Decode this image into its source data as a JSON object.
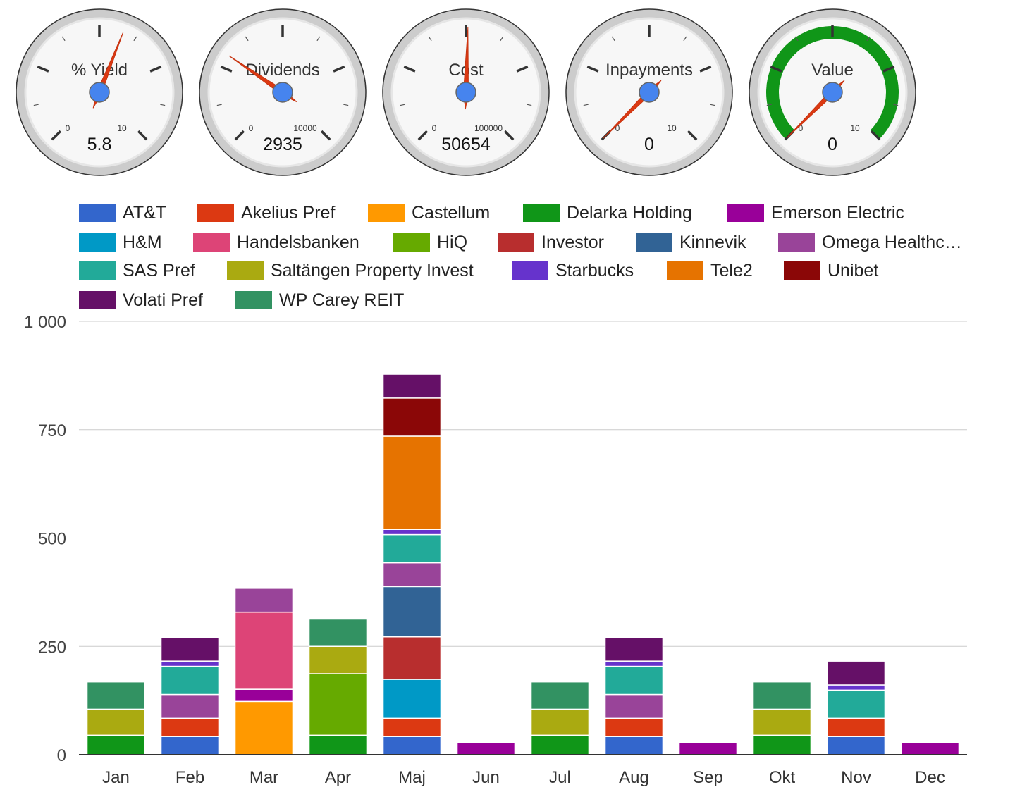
{
  "gauges": [
    {
      "label": "% Yield",
      "value": 5.8,
      "display": "5.8",
      "min": 0,
      "max": 10,
      "min_label": "0",
      "max_label": "10",
      "green_band": false
    },
    {
      "label": "Dividends",
      "value": 2935,
      "display": "2935",
      "min": 0,
      "max": 10000,
      "min_label": "0",
      "max_label": "10000",
      "green_band": false
    },
    {
      "label": "Cost",
      "value": 50654,
      "display": "50654",
      "min": 0,
      "max": 100000,
      "min_label": "0",
      "max_label": "100000",
      "green_band": false
    },
    {
      "label": "Inpayments",
      "value": 0,
      "display": "0",
      "min": 0,
      "max": 10,
      "min_label": "0",
      "max_label": "10",
      "green_band": false
    },
    {
      "label": "Value",
      "value": 0,
      "display": "0",
      "min": 0,
      "max": 10,
      "min_label": "0",
      "max_label": "10",
      "green_band": true
    }
  ],
  "colors": {
    "gauge_needle": "#dc3912",
    "gauge_hub": "#4684ee",
    "gauge_band": "#109618",
    "gridline": "#cccccc",
    "axis": "#333333"
  },
  "chart_data": {
    "type": "bar",
    "stacked": true,
    "categories": [
      "Jan",
      "Feb",
      "Mar",
      "Apr",
      "Maj",
      "Jun",
      "Jul",
      "Aug",
      "Sep",
      "Okt",
      "Nov",
      "Dec"
    ],
    "ylim": [
      0,
      1000
    ],
    "yticks": [
      0,
      250,
      500,
      750,
      1000
    ],
    "ytick_labels": [
      "0",
      "250",
      "500",
      "750",
      "1 000"
    ],
    "grid": true,
    "legend_position": "top",
    "series": [
      {
        "name": "AT&T",
        "color": "#3366cc",
        "values": [
          0,
          42,
          0,
          0,
          42,
          0,
          0,
          42,
          0,
          0,
          42,
          0
        ]
      },
      {
        "name": "Akelius Pref",
        "color": "#dc3912",
        "values": [
          0,
          42,
          0,
          0,
          42,
          0,
          0,
          42,
          0,
          0,
          42,
          0
        ]
      },
      {
        "name": "Castellum",
        "color": "#ff9900",
        "values": [
          0,
          0,
          123,
          0,
          0,
          0,
          0,
          0,
          0,
          0,
          0,
          0
        ]
      },
      {
        "name": "Delarka Holding",
        "color": "#109618",
        "values": [
          45,
          0,
          0,
          45,
          0,
          0,
          45,
          0,
          0,
          45,
          0,
          0
        ]
      },
      {
        "name": "Emerson Electric",
        "color": "#990099",
        "values": [
          0,
          0,
          28,
          0,
          0,
          28,
          0,
          0,
          28,
          0,
          0,
          28
        ]
      },
      {
        "name": "H&M",
        "color": "#0099c6",
        "values": [
          0,
          0,
          0,
          0,
          90,
          0,
          0,
          0,
          0,
          0,
          0,
          0
        ]
      },
      {
        "name": "Handelsbanken",
        "color": "#dd4477",
        "values": [
          0,
          0,
          178,
          0,
          0,
          0,
          0,
          0,
          0,
          0,
          0,
          0
        ]
      },
      {
        "name": "HiQ",
        "color": "#66aa00",
        "values": [
          0,
          0,
          0,
          142,
          0,
          0,
          0,
          0,
          0,
          0,
          0,
          0
        ]
      },
      {
        "name": "Investor",
        "color": "#b82e2e",
        "values": [
          0,
          0,
          0,
          0,
          98,
          0,
          0,
          0,
          0,
          0,
          0,
          0
        ]
      },
      {
        "name": "Kinnevik",
        "color": "#316395",
        "values": [
          0,
          0,
          0,
          0,
          116,
          0,
          0,
          0,
          0,
          0,
          0,
          0
        ]
      },
      {
        "name": "Omega Healthc…",
        "color": "#994499",
        "values": [
          0,
          55,
          55,
          0,
          55,
          0,
          0,
          55,
          0,
          0,
          0,
          0
        ]
      },
      {
        "name": "SAS Pref",
        "color": "#22aa99",
        "values": [
          0,
          65,
          0,
          0,
          65,
          0,
          0,
          65,
          0,
          0,
          65,
          0
        ]
      },
      {
        "name": "Saltängen Property Invest",
        "color": "#aaaa11",
        "values": [
          60,
          0,
          0,
          63,
          0,
          0,
          60,
          0,
          0,
          60,
          0,
          0
        ]
      },
      {
        "name": "Starbucks",
        "color": "#6633cc",
        "values": [
          0,
          12,
          0,
          0,
          12,
          0,
          0,
          12,
          0,
          0,
          12,
          0
        ]
      },
      {
        "name": "Tele2",
        "color": "#e67300",
        "values": [
          0,
          0,
          0,
          0,
          215,
          0,
          0,
          0,
          0,
          0,
          0,
          0
        ]
      },
      {
        "name": "Unibet",
        "color": "#8b0707",
        "values": [
          0,
          0,
          0,
          0,
          88,
          0,
          0,
          0,
          0,
          0,
          0,
          0
        ]
      },
      {
        "name": "Volati Pref",
        "color": "#651067",
        "values": [
          0,
          55,
          0,
          0,
          55,
          0,
          0,
          55,
          0,
          0,
          55,
          0
        ]
      },
      {
        "name": "WP Carey REIT",
        "color": "#329262",
        "values": [
          63,
          0,
          0,
          63,
          0,
          0,
          63,
          0,
          0,
          63,
          0,
          0
        ]
      }
    ]
  }
}
